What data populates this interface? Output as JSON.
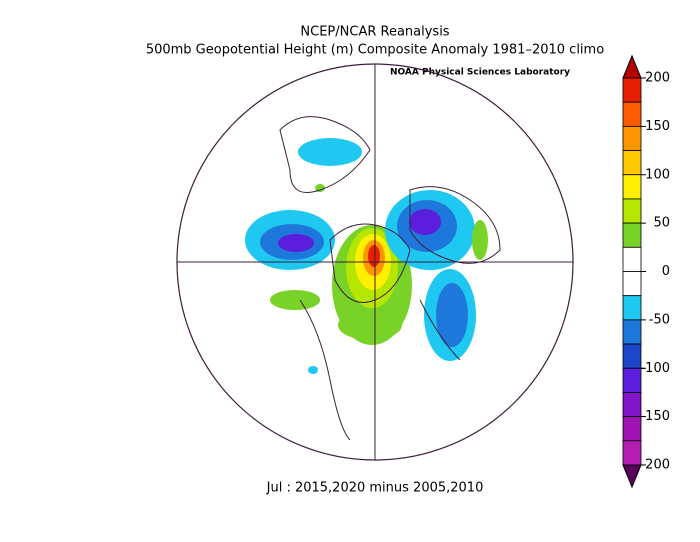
{
  "title": "NCEP/NCAR Reanalysis",
  "subtitle": "500mb Geopotential Height (m) Composite Anomaly 1981–2010 climo",
  "credit": "NOAA Physical Sciences Laboratory",
  "footer": "Jul : 2015,2020 minus 2005,2010",
  "colorbar": {
    "ylim": [
      -200,
      200
    ],
    "ticks": [
      200,
      150,
      100,
      50,
      0,
      -50,
      -100,
      -150,
      -200
    ],
    "colors": [
      "#b40000",
      "#e61e00",
      "#ff5a00",
      "#ff9600",
      "#ffc800",
      "#fff000",
      "#b4e600",
      "#78d228",
      "#ffffff",
      "#ffffff",
      "#1ec8f0",
      "#1e78dc",
      "#1e46c8",
      "#5a1edc",
      "#8214c8",
      "#a014b4",
      "#b41eb4",
      "#5a005a"
    ]
  }
}
